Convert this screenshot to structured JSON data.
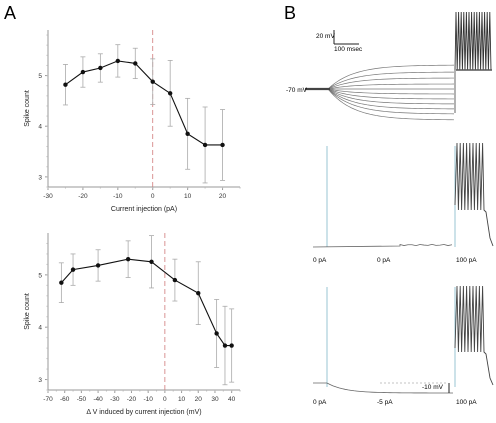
{
  "panels": {
    "a_label": "A",
    "b_label": "B"
  },
  "chart_data": [
    {
      "type": "line",
      "panel": "A-top",
      "xlabel": "Current injection (pA)",
      "ylabel": "Spike count",
      "xlim": [
        -30,
        25
      ],
      "ylim": [
        2.8,
        5.9
      ],
      "xticks": [
        -30,
        -20,
        -10,
        0,
        10,
        20
      ],
      "yticks": [
        3,
        4,
        5
      ],
      "reference_line_x": 0,
      "series": [
        {
          "x": [
            -25,
            -20,
            -15,
            -10,
            -5,
            0,
            5,
            10,
            15,
            20
          ],
          "y": [
            4.82,
            5.07,
            5.15,
            5.29,
            5.24,
            4.88,
            4.65,
            3.85,
            3.63,
            3.63
          ],
          "err": [
            0.4,
            0.3,
            0.28,
            0.32,
            0.3,
            0.45,
            0.65,
            0.7,
            0.75,
            0.7
          ]
        }
      ]
    },
    {
      "type": "line",
      "panel": "A-bottom",
      "xlabel": "Δ V induced by current injection (mV)",
      "ylabel": "Spike count",
      "xlim": [
        -70,
        45
      ],
      "ylim": [
        2.8,
        5.8
      ],
      "xticks": [
        -70,
        -60,
        -50,
        -40,
        -30,
        -20,
        -10,
        0,
        10,
        20,
        30,
        40
      ],
      "yticks": [
        3,
        4,
        5
      ],
      "reference_line_x": 0,
      "series": [
        {
          "x": [
            -62,
            -55,
            -40,
            -22,
            -8,
            6,
            20,
            31,
            36,
            40
          ],
          "y": [
            4.85,
            5.1,
            5.18,
            5.3,
            5.25,
            4.9,
            4.65,
            3.88,
            3.65,
            3.65
          ],
          "err": [
            0.38,
            0.3,
            0.3,
            0.35,
            0.5,
            0.4,
            0.6,
            0.65,
            0.75,
            0.7
          ]
        }
      ]
    }
  ],
  "traces": {
    "scale_mv": "20 mV",
    "scale_ms": "100 msec",
    "resting_label": "-70 mV",
    "row2_labels": [
      "0 pA",
      "0 pA",
      "100 pA"
    ],
    "row3_labels": [
      "0 pA",
      "-5 pA",
      "100 pA"
    ],
    "row3_scale": "-10 mV"
  }
}
